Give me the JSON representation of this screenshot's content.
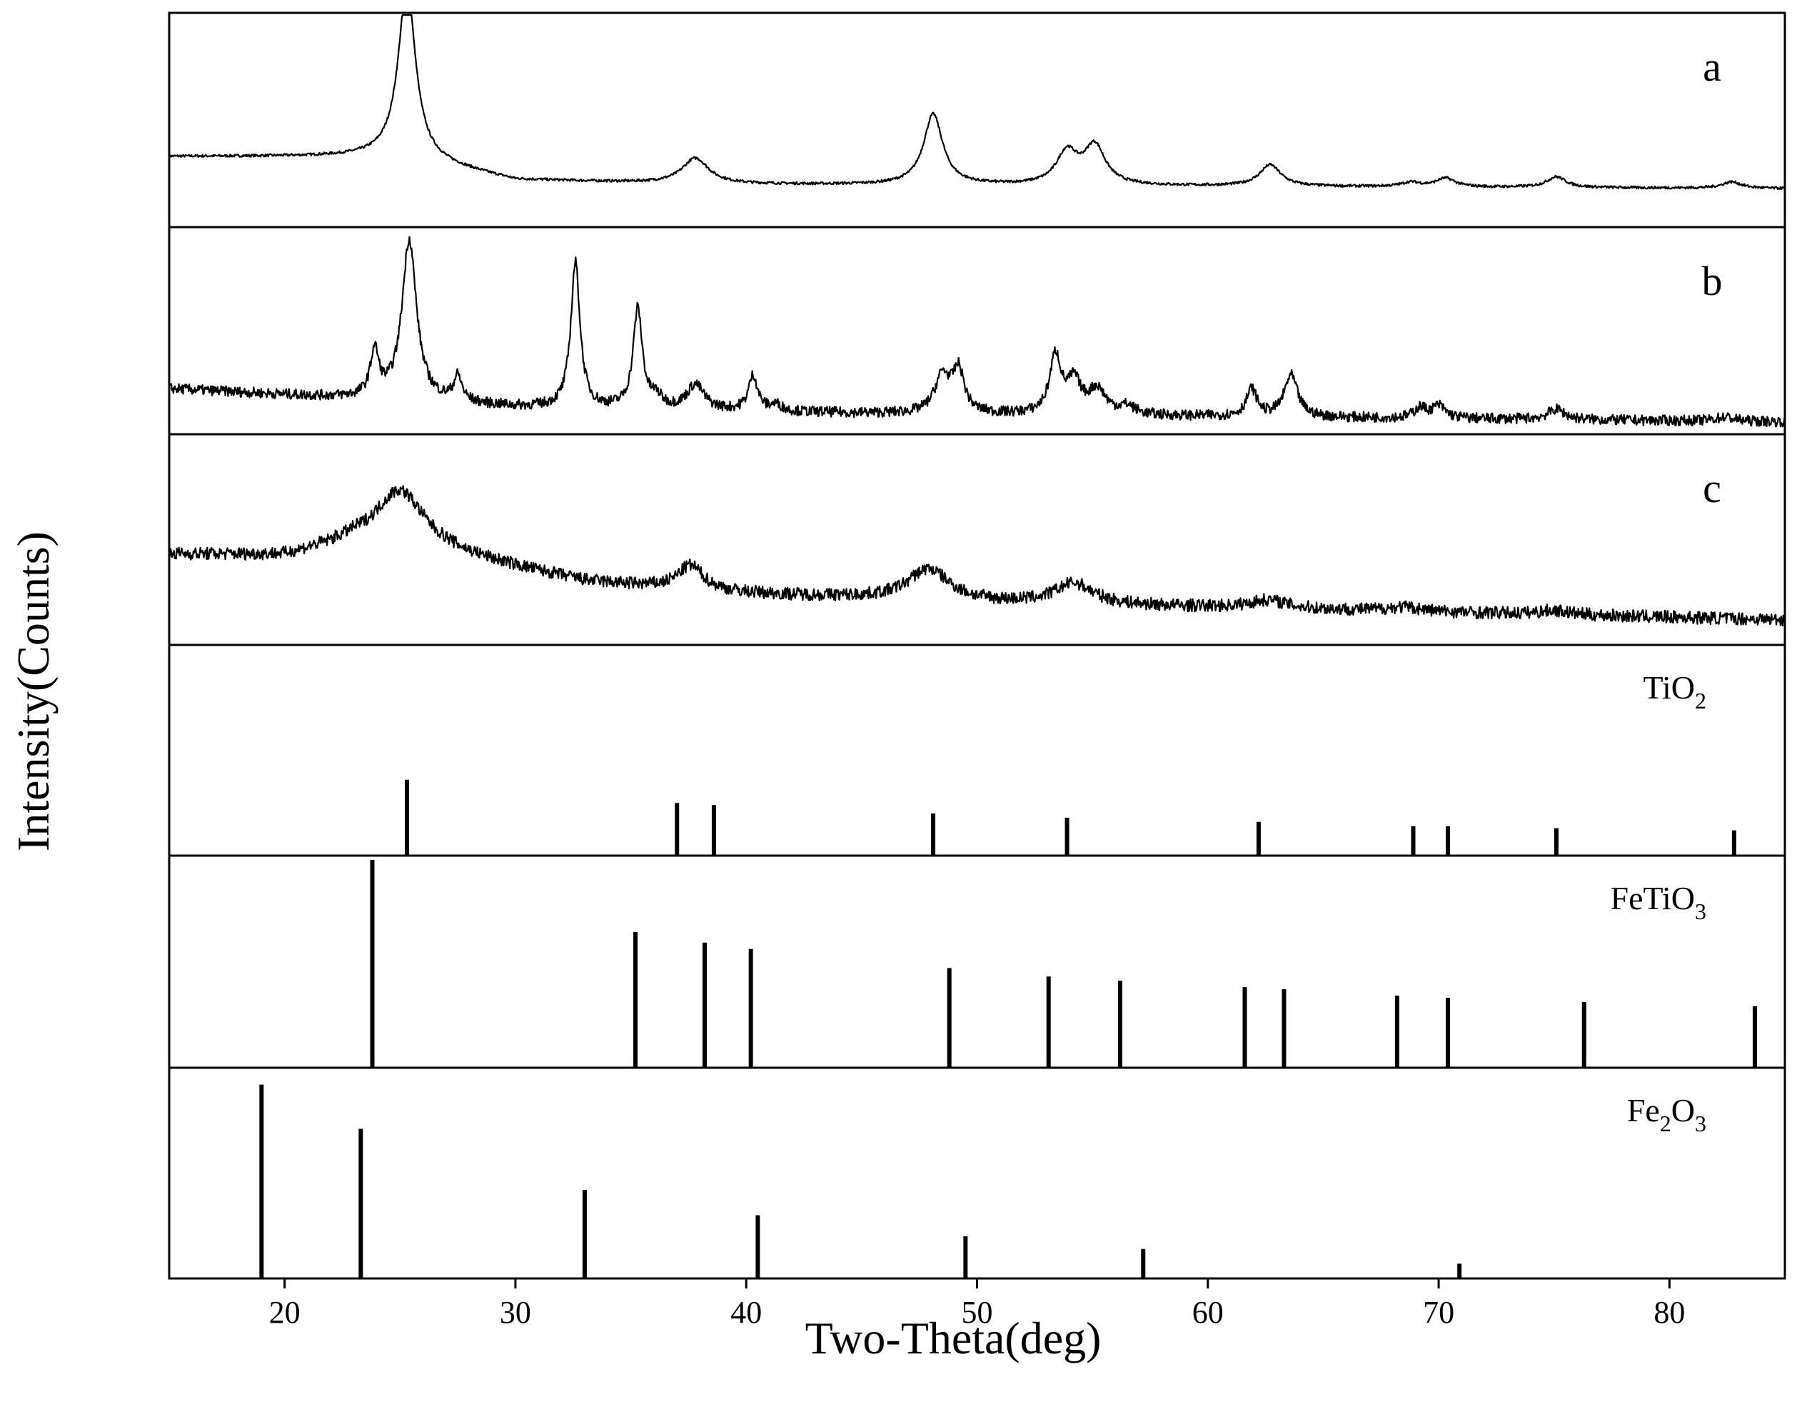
{
  "chart_data": {
    "type": "line",
    "xlabel": "Two-Theta(deg)",
    "ylabel": "Intensity(Counts)",
    "xlim": [
      15,
      85
    ],
    "x_ticks": [
      20,
      30,
      40,
      50,
      60,
      70,
      80
    ],
    "grid": false,
    "series": [
      {
        "name": "a",
        "kind": "pattern",
        "baseline": [
          [
            15,
            0.33
          ],
          [
            25,
            0.33
          ],
          [
            30,
            0.22
          ],
          [
            38,
            0.2
          ],
          [
            85,
            0.18
          ]
        ],
        "peaks": [
          {
            "x": 25.3,
            "h": 0.8,
            "w": 0.45
          },
          {
            "x": 37.8,
            "h": 0.12,
            "w": 0.7
          },
          {
            "x": 48.1,
            "h": 0.33,
            "w": 0.5
          },
          {
            "x": 53.9,
            "h": 0.15,
            "w": 0.55
          },
          {
            "x": 55.1,
            "h": 0.18,
            "w": 0.55
          },
          {
            "x": 62.7,
            "h": 0.1,
            "w": 0.55
          },
          {
            "x": 68.8,
            "h": 0.02,
            "w": 0.5
          },
          {
            "x": 70.3,
            "h": 0.04,
            "w": 0.5
          },
          {
            "x": 75.1,
            "h": 0.05,
            "w": 0.5
          },
          {
            "x": 82.7,
            "h": 0.03,
            "w": 0.5
          }
        ]
      },
      {
        "name": "b",
        "kind": "pattern",
        "baseline": [
          [
            15,
            0.22
          ],
          [
            30,
            0.13
          ],
          [
            45,
            0.1
          ],
          [
            85,
            0.06
          ]
        ],
        "peaks": [
          {
            "x": 23.9,
            "h": 0.22,
            "w": 0.22
          },
          {
            "x": 25.4,
            "h": 0.78,
            "w": 0.38
          },
          {
            "x": 27.5,
            "h": 0.12,
            "w": 0.22
          },
          {
            "x": 32.6,
            "h": 0.7,
            "w": 0.24
          },
          {
            "x": 35.3,
            "h": 0.48,
            "w": 0.24
          },
          {
            "x": 36.1,
            "h": 0.05,
            "w": 0.3
          },
          {
            "x": 37.8,
            "h": 0.12,
            "w": 0.45
          },
          {
            "x": 40.3,
            "h": 0.17,
            "w": 0.24
          },
          {
            "x": 41.3,
            "h": 0.03,
            "w": 0.3
          },
          {
            "x": 48.5,
            "h": 0.18,
            "w": 0.4
          },
          {
            "x": 49.2,
            "h": 0.2,
            "w": 0.3
          },
          {
            "x": 53.4,
            "h": 0.28,
            "w": 0.3
          },
          {
            "x": 54.2,
            "h": 0.15,
            "w": 0.35
          },
          {
            "x": 55.2,
            "h": 0.12,
            "w": 0.45
          },
          {
            "x": 56.5,
            "h": 0.04,
            "w": 0.4
          },
          {
            "x": 61.9,
            "h": 0.13,
            "w": 0.28
          },
          {
            "x": 63.6,
            "h": 0.2,
            "w": 0.35
          },
          {
            "x": 69.2,
            "h": 0.05,
            "w": 0.3
          },
          {
            "x": 70.0,
            "h": 0.06,
            "w": 0.35
          },
          {
            "x": 75.1,
            "h": 0.05,
            "w": 0.45
          },
          {
            "x": 82.4,
            "h": 0.02,
            "w": 0.5
          }
        ],
        "noise": 0.025
      },
      {
        "name": "c",
        "kind": "pattern",
        "baseline": [
          [
            15,
            0.43
          ],
          [
            20,
            0.42
          ],
          [
            23,
            0.48
          ],
          [
            27,
            0.43
          ],
          [
            33,
            0.3
          ],
          [
            38,
            0.25
          ],
          [
            50,
            0.2
          ],
          [
            85,
            0.12
          ]
        ],
        "peaks": [
          {
            "x": 25.0,
            "h": 0.28,
            "w": 1.3
          },
          {
            "x": 37.6,
            "h": 0.12,
            "w": 0.7
          },
          {
            "x": 47.9,
            "h": 0.15,
            "w": 1.1
          },
          {
            "x": 54.2,
            "h": 0.1,
            "w": 1.0
          },
          {
            "x": 62.6,
            "h": 0.04,
            "w": 1.0
          },
          {
            "x": 68.5,
            "h": 0.02,
            "w": 1.0
          },
          {
            "x": 75.0,
            "h": 0.02,
            "w": 0.8
          }
        ],
        "noise": 0.03
      },
      {
        "name": "TiO2",
        "label_main": "TiO",
        "label_sub": "2",
        "kind": "sticks",
        "x": [
          25.3,
          37.0,
          38.6,
          48.1,
          53.9,
          62.2,
          68.9,
          70.4,
          75.1,
          82.8
        ],
        "values": [
          0.36,
          0.25,
          0.24,
          0.2,
          0.18,
          0.16,
          0.14,
          0.14,
          0.13,
          0.12
        ]
      },
      {
        "name": "FeTiO3",
        "label_main": "FeTiO",
        "label_sub": "3",
        "kind": "sticks",
        "x": [
          23.8,
          35.2,
          38.2,
          40.2,
          48.8,
          53.1,
          56.2,
          61.6,
          63.3,
          68.2,
          70.4,
          76.3,
          83.7
        ],
        "values": [
          0.98,
          0.64,
          0.59,
          0.56,
          0.47,
          0.43,
          0.41,
          0.38,
          0.37,
          0.34,
          0.33,
          0.31,
          0.29
        ]
      },
      {
        "name": "Fe2O3",
        "label_main": "Fe",
        "label_sub": "2",
        "label_main2": "O",
        "label_sub2": "3",
        "kind": "sticks",
        "x": [
          19.0,
          23.3,
          33.0,
          40.5,
          49.5,
          57.2,
          70.9
        ],
        "values": [
          0.92,
          0.71,
          0.42,
          0.3,
          0.2,
          0.14,
          0.07
        ]
      }
    ]
  }
}
